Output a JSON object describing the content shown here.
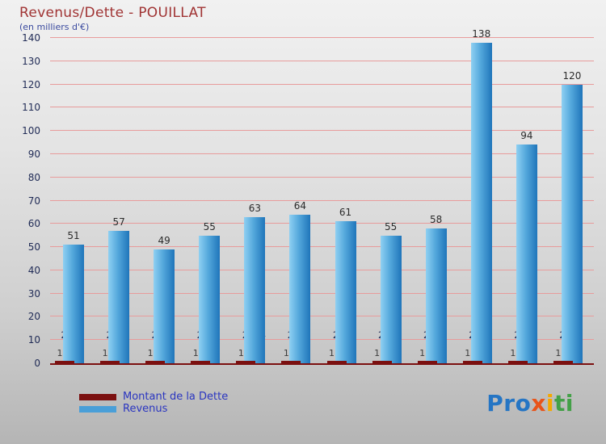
{
  "header": {
    "title": "Revenus/Dette - POUILLAT",
    "subtitle": "(en milliers d'€)"
  },
  "legend": [
    {
      "label": "Montant de la Dette",
      "color": "#7b1010"
    },
    {
      "label": "Revenus",
      "color": "#4a9fd8"
    }
  ],
  "logo": {
    "letters": [
      {
        "ch": "P",
        "color": "#2575c4"
      },
      {
        "ch": "r",
        "color": "#2575c4"
      },
      {
        "ch": "o",
        "color": "#2575c4"
      },
      {
        "ch": "x",
        "color": "#e8541a"
      },
      {
        "ch": "i",
        "color": "#f5a800"
      },
      {
        "ch": "t",
        "color": "#43a047"
      },
      {
        "ch": "i",
        "color": "#43a047"
      }
    ]
  },
  "chart_data": {
    "type": "bar",
    "title": "Revenus/Dette - POUILLAT",
    "subtitle": "(en milliers d'€)",
    "categories": [
      "2000",
      "2001",
      "2002",
      "2003",
      "2004",
      "2005",
      "2006",
      "2007",
      "2008",
      "2009",
      "2010",
      "2011"
    ],
    "series": [
      {
        "name": "Montant de la Dette",
        "color": "#7b1010",
        "values": [
          1,
          1,
          1,
          1,
          1,
          1,
          1,
          1,
          1,
          1,
          1,
          1
        ]
      },
      {
        "name": "Revenus",
        "color": "#3f97d0",
        "values": [
          51,
          57,
          49,
          55,
          63,
          64,
          61,
          55,
          58,
          138,
          94,
          120
        ]
      }
    ],
    "ylim": [
      0,
      140
    ],
    "ytick_step": 10,
    "grid": true,
    "legend_position": "bottom"
  }
}
